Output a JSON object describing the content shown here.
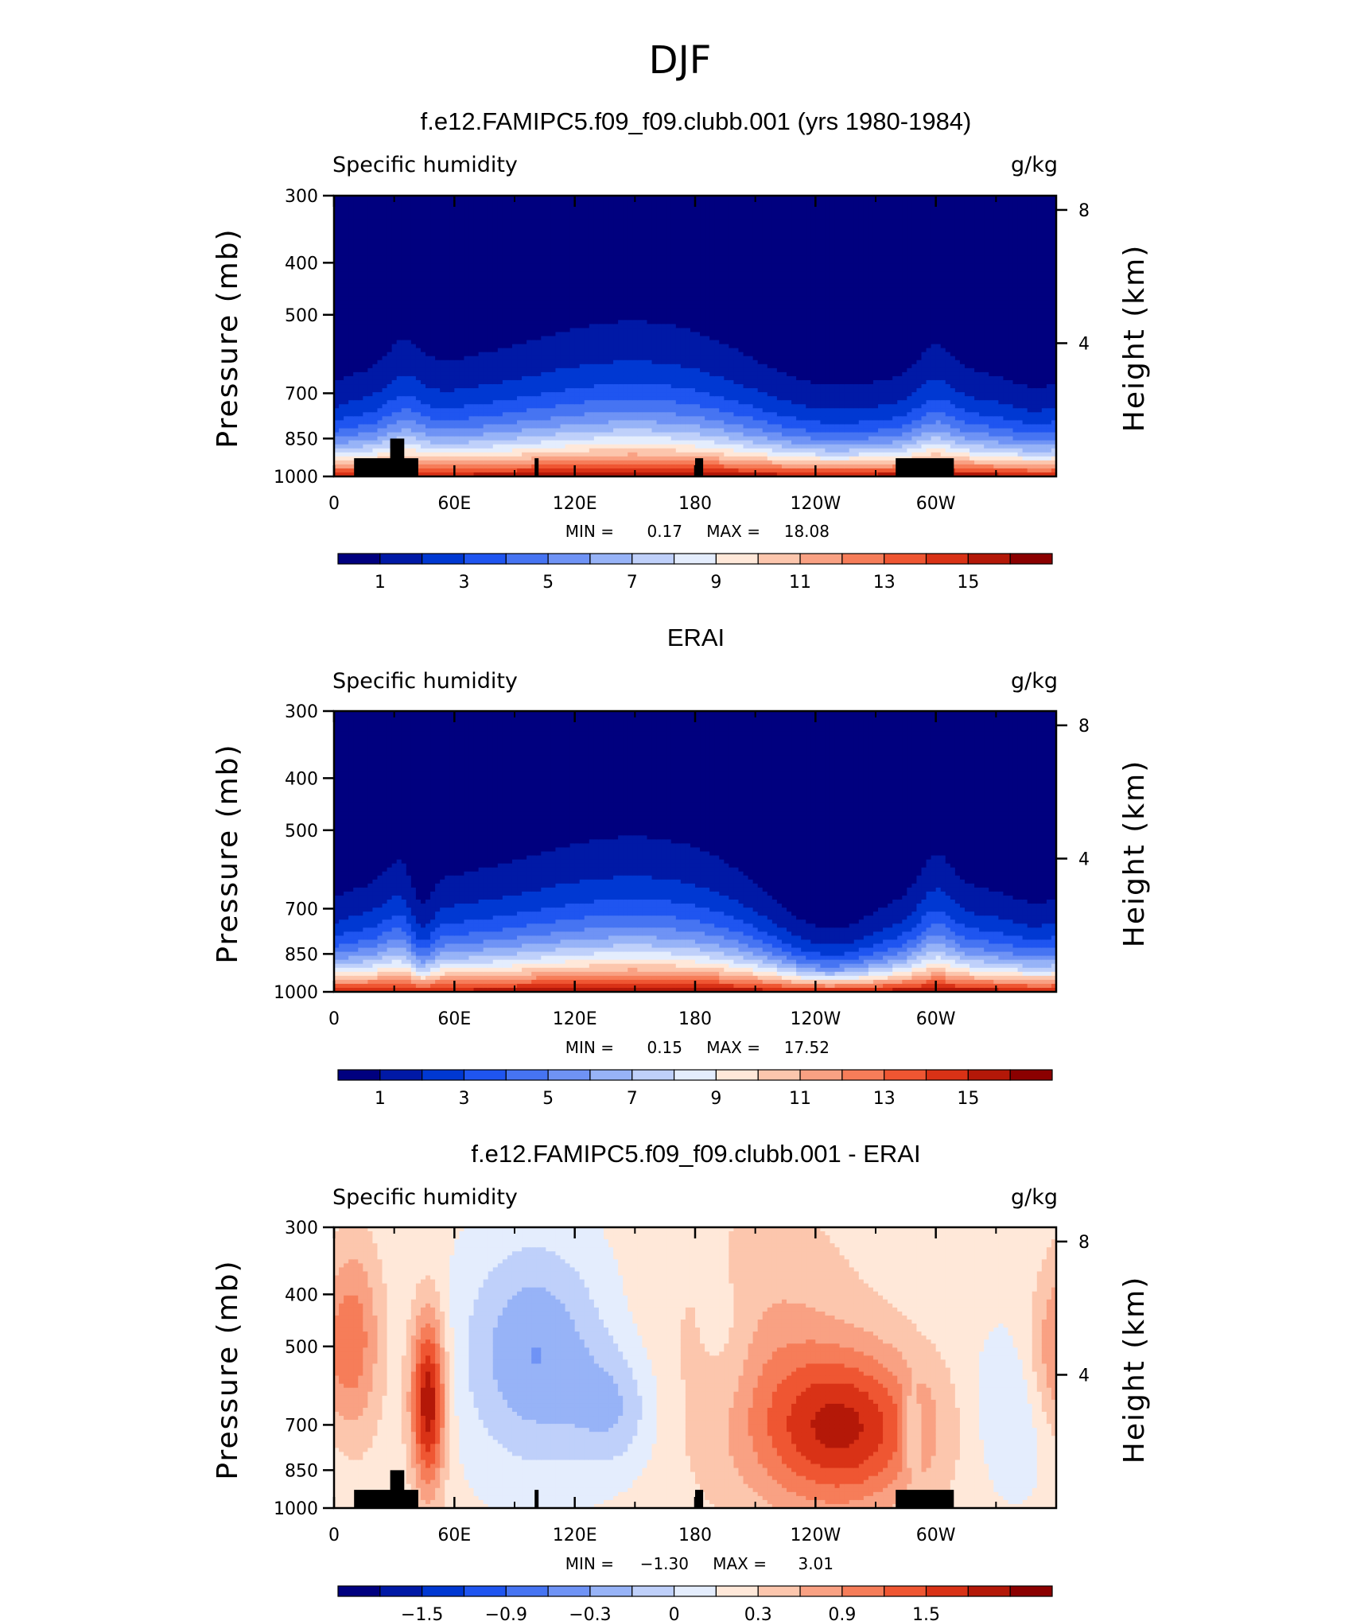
{
  "figure": {
    "title": "DJF"
  },
  "colormap": [
    "#00007f",
    "#0019a6",
    "#0038d2",
    "#1f55f0",
    "#4674f2",
    "#6f93f5",
    "#97b3f7",
    "#bfd0fa",
    "#e4edfd",
    "#ffe8d9",
    "#fcc6ad",
    "#f9a183",
    "#f67d59",
    "#ef5632",
    "#d93216",
    "#b41808",
    "#8b0000"
  ],
  "chart_data": [
    {
      "type": "heatmap",
      "title": "f.e12.FAMIPC5.f09_f09.clubb.001 (yrs 1980-1984)",
      "left_label": "Specific humidity",
      "right_label": "g/kg",
      "xlabel": "",
      "ylabel": "Pressure (mb)",
      "y2label": "Height (km)",
      "x_ticks": [
        "0",
        "60E",
        "120E",
        "180",
        "120W",
        "60W"
      ],
      "y_ticks": [
        "300",
        "400",
        "500",
        "700",
        "850",
        "1000"
      ],
      "y2_ticks": [
        "8",
        "4"
      ],
      "xlim": [
        0,
        360
      ],
      "ylim": [
        1000,
        300
      ],
      "min_label": "MIN =",
      "min_value": "0.17",
      "max_label": "MAX =",
      "max_value": "18.08",
      "colorbar_levels": [
        0,
        1,
        2,
        3,
        4,
        5,
        6,
        7,
        8,
        9,
        10,
        11,
        12,
        13,
        14,
        15
      ],
      "colorbar_labels": [
        "1",
        "3",
        "5",
        "7",
        "9",
        "11",
        "13",
        "15"
      ],
      "field": "model",
      "vrange": [
        0,
        16
      ]
    },
    {
      "type": "heatmap",
      "title": "ERAI",
      "left_label": "Specific humidity",
      "right_label": "g/kg",
      "xlabel": "",
      "ylabel": "Pressure (mb)",
      "y2label": "Height (km)",
      "x_ticks": [
        "0",
        "60E",
        "120E",
        "180",
        "120W",
        "60W"
      ],
      "y_ticks": [
        "300",
        "400",
        "500",
        "700",
        "850",
        "1000"
      ],
      "y2_ticks": [
        "8",
        "4"
      ],
      "xlim": [
        0,
        360
      ],
      "ylim": [
        1000,
        300
      ],
      "min_label": "MIN =",
      "min_value": "0.15",
      "max_label": "MAX =",
      "max_value": "17.52",
      "colorbar_levels": [
        0,
        1,
        2,
        3,
        4,
        5,
        6,
        7,
        8,
        9,
        10,
        11,
        12,
        13,
        14,
        15
      ],
      "colorbar_labels": [
        "1",
        "3",
        "5",
        "7",
        "9",
        "11",
        "13",
        "15"
      ],
      "field": "obs",
      "vrange": [
        0,
        16
      ]
    },
    {
      "type": "heatmap",
      "title": "f.e12.FAMIPC5.f09_f09.clubb.001 - ERAI",
      "left_label": "Specific humidity",
      "right_label": "g/kg",
      "xlabel": "",
      "ylabel": "Pressure (mb)",
      "y2label": "Height (km)",
      "x_ticks": [
        "0",
        "60E",
        "120E",
        "180",
        "120W",
        "60W"
      ],
      "y_ticks": [
        "300",
        "400",
        "500",
        "700",
        "850",
        "1000"
      ],
      "y2_ticks": [
        "8",
        "4"
      ],
      "xlim": [
        0,
        360
      ],
      "ylim": [
        1000,
        300
      ],
      "min_label": "MIN =",
      "min_value": "−1.30",
      "max_label": "MAX =",
      "max_value": "3.01",
      "colorbar_levels": [
        -1.8,
        -1.5,
        -1.2,
        -0.9,
        -0.6,
        -0.3,
        0,
        0.3,
        0.6,
        0.9,
        1.2,
        1.5,
        1.8
      ],
      "colorbar_labels": [
        "−1.5",
        "−0.9",
        "−0.3",
        "0",
        "0.3",
        "0.9",
        "1.5"
      ],
      "field": "diff",
      "vrange": [
        -2.1,
        2.1
      ]
    }
  ]
}
